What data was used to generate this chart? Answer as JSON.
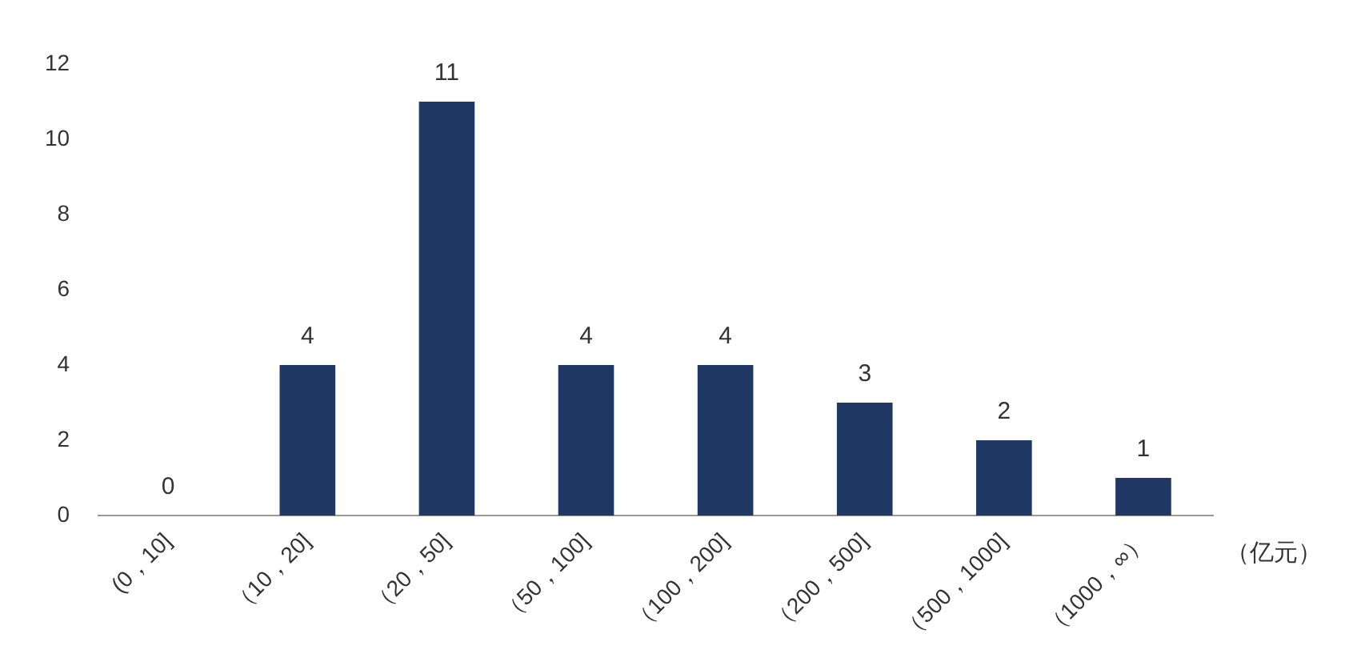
{
  "chart_data": {
    "type": "bar",
    "xlabel": "（亿元）",
    "categories": [
      "(0，10]",
      "（10，20]",
      "（20，50]",
      "（50，100]",
      "（100，200]",
      "（200，500]",
      "（500，1000]",
      "（1000，∞）"
    ],
    "values": [
      0,
      4,
      11,
      4,
      4,
      3,
      2,
      1
    ],
    "color": "#1f3864",
    "ylim": [
      0,
      12
    ],
    "yticks": [
      0,
      2,
      4,
      6,
      8,
      10,
      12
    ],
    "grid": false,
    "data_labels": true
  }
}
